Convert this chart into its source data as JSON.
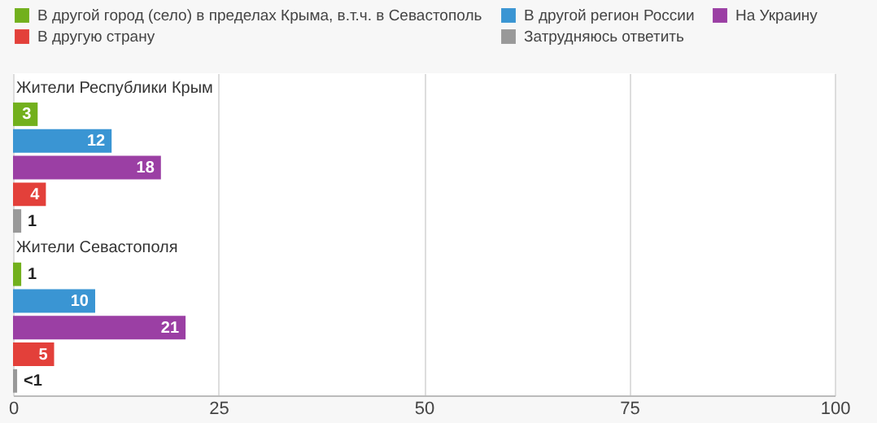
{
  "chart_data": {
    "type": "bar",
    "orientation": "horizontal",
    "categories": [
      "Жители Республики Крым",
      "Жители Севастополя"
    ],
    "series": [
      {
        "name": "В другой город (село) в пределах Крыма, в.т.ч. в Севастополь",
        "color": "#72b01d",
        "values": [
          3,
          1
        ],
        "value_labels": [
          "3",
          "1"
        ]
      },
      {
        "name": "В другой регион России",
        "color": "#3a95d3",
        "values": [
          12,
          10
        ],
        "value_labels": [
          "12",
          "10"
        ]
      },
      {
        "name": "На Украину",
        "color": "#9b3fa4",
        "values": [
          18,
          21
        ],
        "value_labels": [
          "18",
          "21"
        ]
      },
      {
        "name": "В другую страну",
        "color": "#e3403a",
        "values": [
          4,
          5
        ],
        "value_labels": [
          "4",
          "5"
        ]
      },
      {
        "name": "Затрудняюсь ответить",
        "color": "#999999",
        "values": [
          1,
          0.5
        ],
        "value_labels": [
          "1",
          "<1"
        ]
      }
    ],
    "xlim": [
      0,
      100
    ],
    "xticks": [
      0,
      25,
      50,
      75,
      100
    ],
    "grid": "x",
    "legend": "top"
  }
}
